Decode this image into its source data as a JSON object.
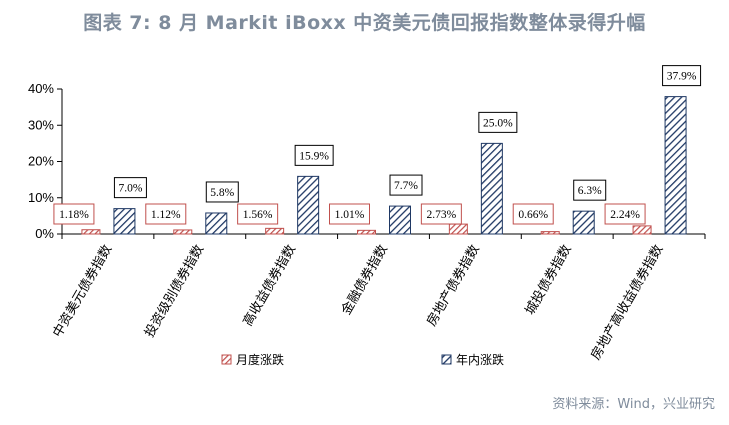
{
  "title": "图表 7: 8 月 Markit iBoxx 中资美元债回报指数整体录得升幅",
  "source": "资料来源：Wind，兴业研究",
  "chart_data": {
    "type": "bar",
    "categories": [
      "中资美元债券指数",
      "投资级别债券指数",
      "高收益债券指数",
      "金融债券指数",
      "房地产债券指数",
      "城投债券指数",
      "房地产高收益债券指数"
    ],
    "series": [
      {
        "name": "月度涨跌",
        "values": [
          1.18,
          1.12,
          1.56,
          1.01,
          2.73,
          0.66,
          2.24
        ],
        "labels": [
          "1.18%",
          "1.12%",
          "1.56%",
          "1.01%",
          "2.73%",
          "0.66%",
          "2.24%"
        ],
        "color": "#c0504d"
      },
      {
        "name": "年内涨跌",
        "values": [
          7.0,
          5.8,
          15.9,
          7.7,
          25.0,
          6.3,
          37.9
        ],
        "labels": [
          "7.0%",
          "5.8%",
          "15.9%",
          "7.7%",
          "25.0%",
          "6.3%",
          "37.9%"
        ],
        "color": "#1f3864"
      }
    ],
    "ylim": [
      0,
      40
    ],
    "yticks": [
      "0%",
      "10%",
      "20%",
      "30%",
      "40%"
    ],
    "ytick_values": [
      0,
      10,
      20,
      30,
      40
    ],
    "legend_position": "bottom",
    "grid": false
  }
}
